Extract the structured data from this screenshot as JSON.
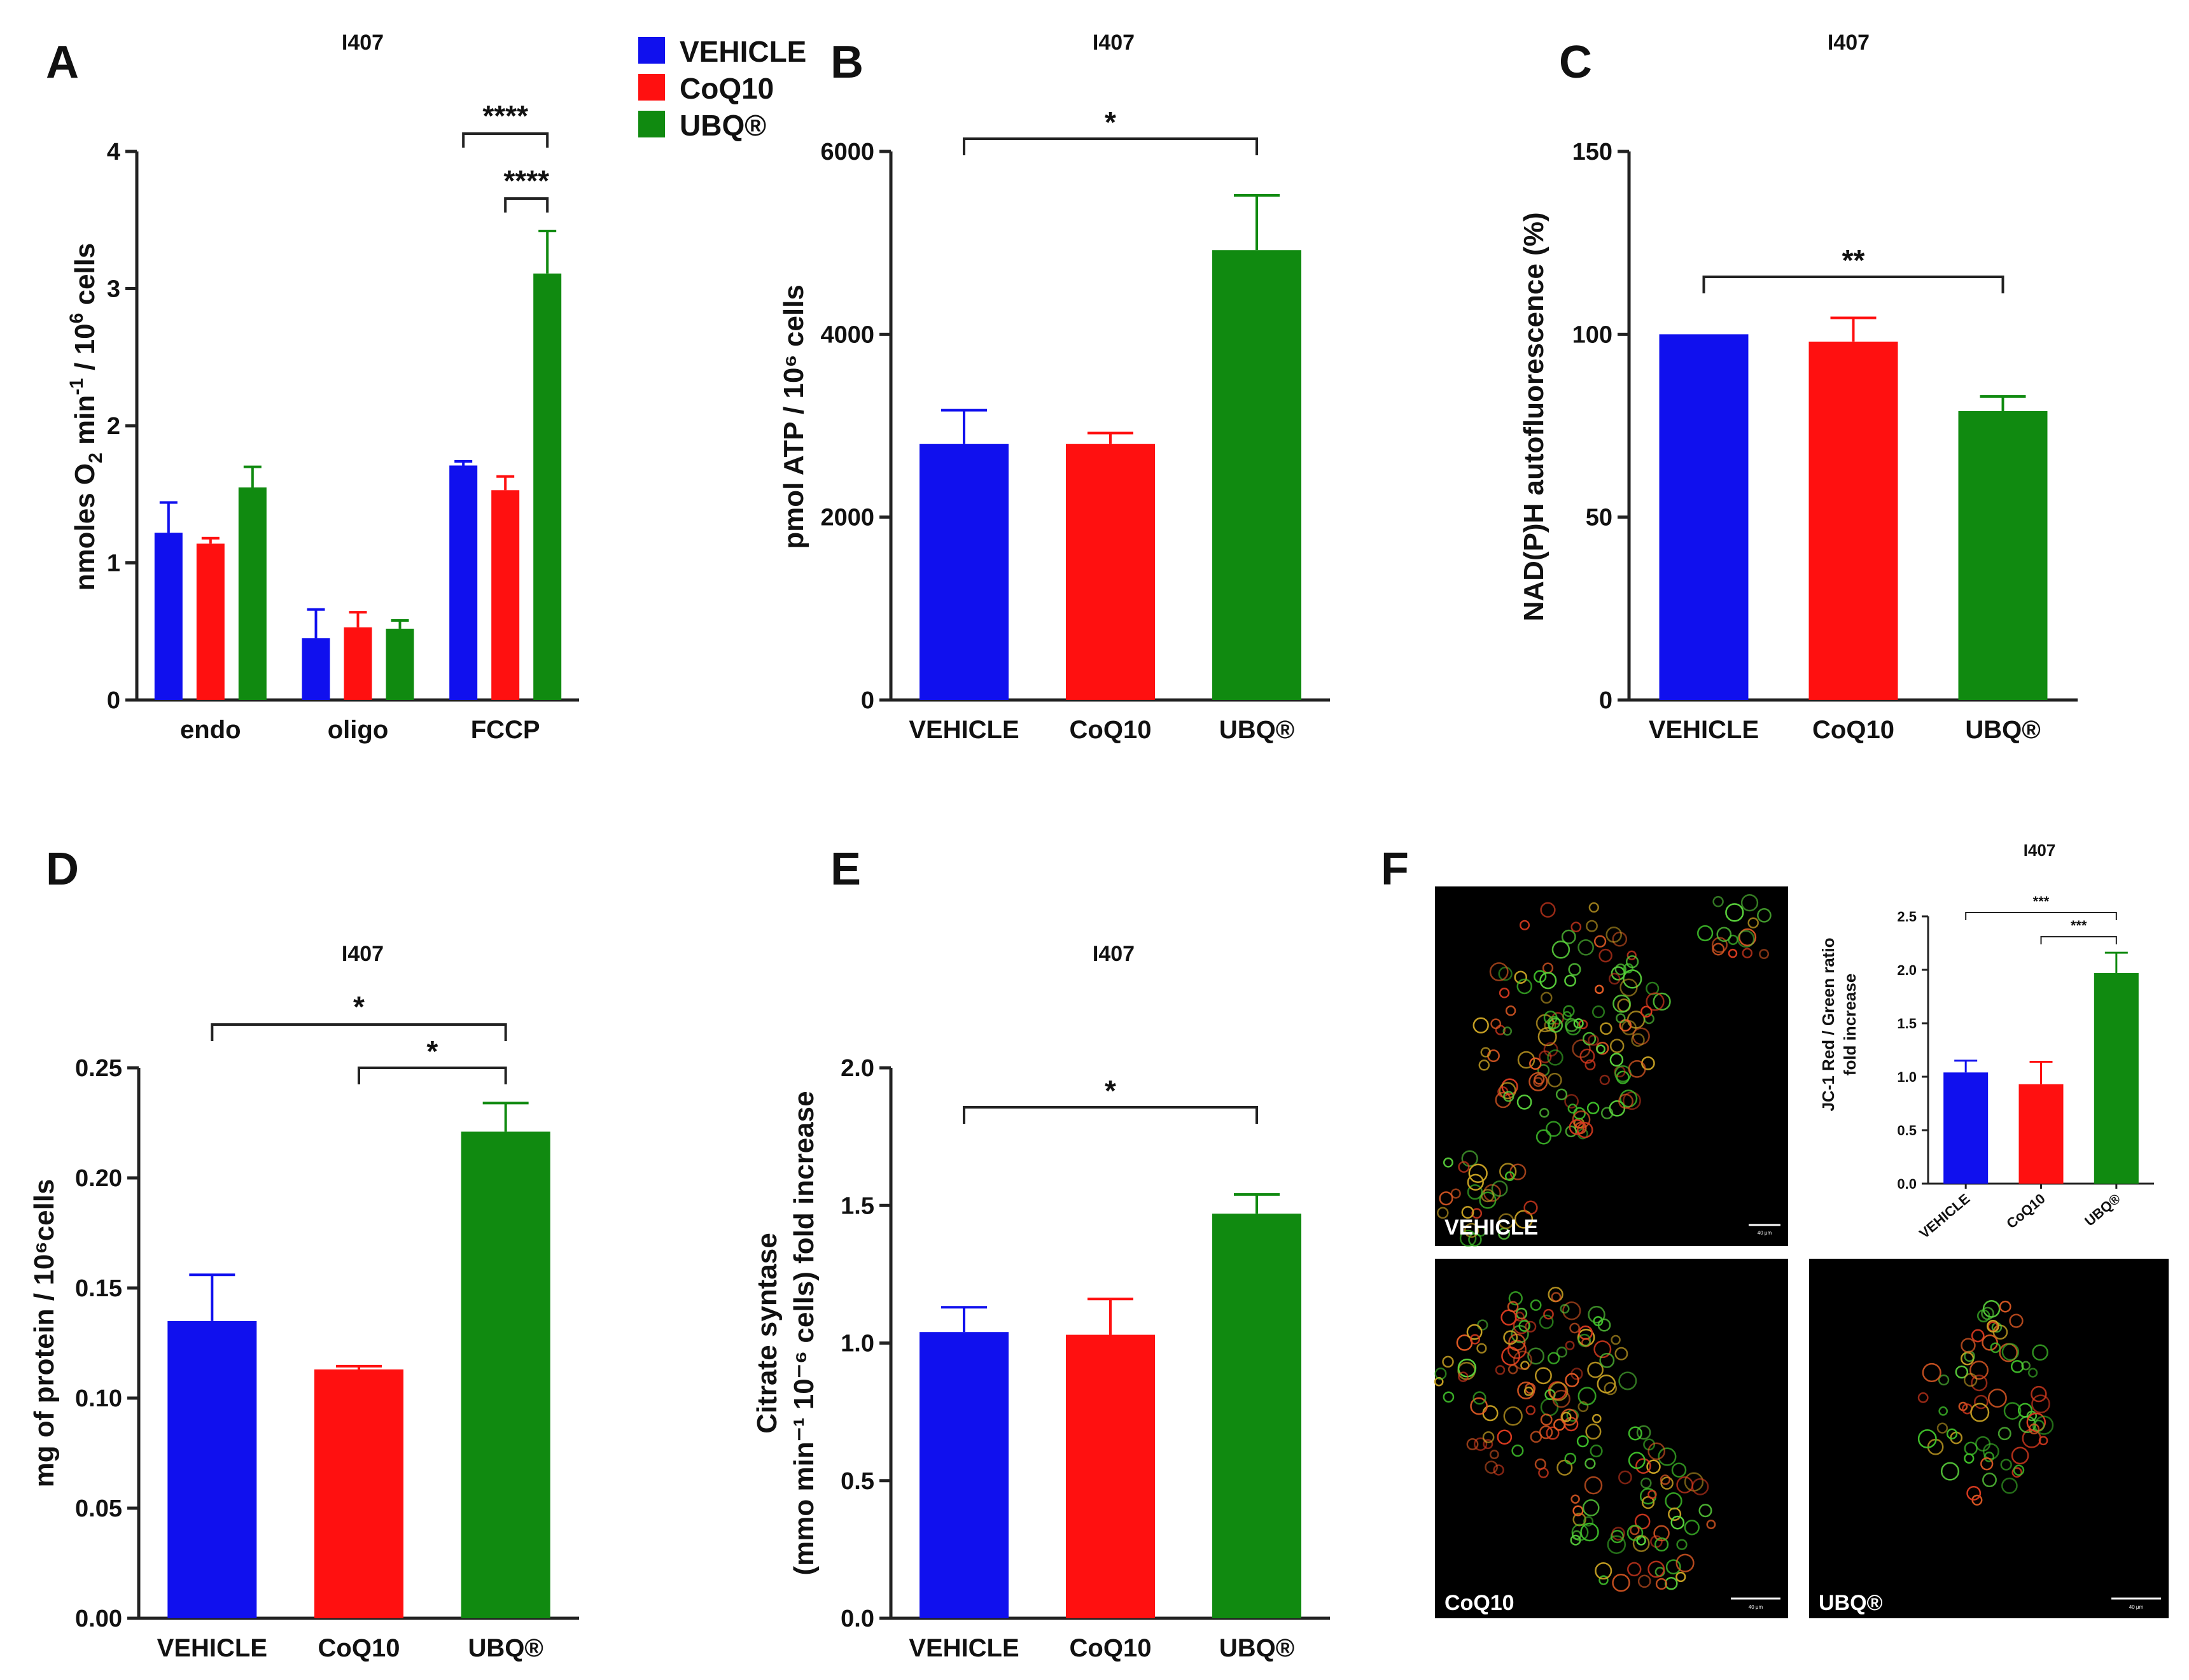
{
  "legend": [
    {
      "label": "VEHICLE",
      "color": "#1010ee"
    },
    {
      "label": "CoQ10",
      "color": "#ff1010"
    },
    {
      "label": "UBQ®",
      "color": "#108a10"
    }
  ],
  "chart_data": [
    {
      "id": "A",
      "panel_label": "A",
      "type": "bar",
      "title": "I407",
      "ylabel": "nmoles O₂ min⁻¹ / 10⁶ cells",
      "ylim": [
        0,
        4
      ],
      "yticks": [
        "0",
        "1",
        "2",
        "3",
        "4"
      ],
      "categories": [
        "endo",
        "oligo",
        "FCCP"
      ],
      "series": [
        {
          "name": "VEHICLE",
          "color": "#1010ee",
          "values": [
            1.22,
            0.45,
            1.71
          ],
          "errors": [
            0.22,
            0.21,
            0.03
          ]
        },
        {
          "name": "CoQ10",
          "color": "#ff1010",
          "values": [
            1.14,
            0.53,
            1.53
          ],
          "errors": [
            0.04,
            0.11,
            0.1
          ]
        },
        {
          "name": "UBQ®",
          "color": "#108a10",
          "values": [
            1.55,
            0.52,
            3.11
          ],
          "errors": [
            0.15,
            0.06,
            0.31
          ]
        }
      ],
      "significance": [
        {
          "label": "****",
          "between": [
            "FCCP:VEHICLE",
            "FCCP:UBQ®"
          ]
        },
        {
          "label": "****",
          "between": [
            "FCCP:CoQ10",
            "FCCP:UBQ®"
          ]
        }
      ]
    },
    {
      "id": "B",
      "panel_label": "B",
      "type": "bar",
      "title": "I407",
      "ylabel": "pmol ATP / 10⁶ cells",
      "ylim": [
        0,
        6000
      ],
      "yticks": [
        "0",
        "2000",
        "4000",
        "6000"
      ],
      "categories": [
        "VEHICLE",
        "CoQ10",
        "UBQ®"
      ],
      "colors": [
        "#1010ee",
        "#ff1010",
        "#108a10"
      ],
      "values": [
        2800,
        2800,
        4920
      ],
      "errors": [
        370,
        120,
        600
      ],
      "significance": [
        {
          "label": "*",
          "between": [
            "VEHICLE",
            "UBQ®"
          ]
        }
      ]
    },
    {
      "id": "C",
      "panel_label": "C",
      "type": "bar",
      "title": "I407",
      "ylabel": "NAD(P)H autofluorescence (%)",
      "ylim": [
        0,
        150
      ],
      "yticks": [
        "0",
        "50",
        "100",
        "150"
      ],
      "categories": [
        "VEHICLE",
        "CoQ10",
        "UBQ®"
      ],
      "colors": [
        "#1010ee",
        "#ff1010",
        "#108a10"
      ],
      "values": [
        100,
        98,
        79
      ],
      "errors": [
        0,
        6.5,
        4
      ],
      "significance": [
        {
          "label": "**",
          "between": [
            "VEHICLE",
            "UBQ®"
          ]
        }
      ]
    },
    {
      "id": "D",
      "panel_label": "D",
      "type": "bar",
      "title": "I407",
      "ylabel": "mg of protein / 10⁶cells",
      "ylim": [
        0,
        0.25
      ],
      "yticks": [
        "0.00",
        "0.05",
        "0.10",
        "0.15",
        "0.20",
        "0.25"
      ],
      "categories": [
        "VEHICLE",
        "CoQ10",
        "UBQ®"
      ],
      "colors": [
        "#1010ee",
        "#ff1010",
        "#108a10"
      ],
      "values": [
        0.135,
        0.113,
        0.221
      ],
      "errors": [
        0.021,
        0.0015,
        0.013
      ],
      "significance": [
        {
          "label": "*",
          "between": [
            "VEHICLE",
            "UBQ®"
          ]
        },
        {
          "label": "*",
          "between": [
            "CoQ10",
            "UBQ®"
          ]
        }
      ]
    },
    {
      "id": "E",
      "panel_label": "E",
      "type": "bar",
      "title": "I407",
      "ylabel": "Citrate syntase (mmo min⁻¹ 10⁻⁶ cells) fold increase",
      "ylabel_line1": "Citrate syntase",
      "ylabel_line2": "(mmo min⁻¹ 10⁻⁶ cells) fold increase",
      "ylim": [
        0,
        2.0
      ],
      "yticks": [
        "0.0",
        "0.5",
        "1.0",
        "1.5",
        "2.0"
      ],
      "categories": [
        "VEHICLE",
        "CoQ10",
        "UBQ®"
      ],
      "colors": [
        "#1010ee",
        "#ff1010",
        "#108a10"
      ],
      "values": [
        1.04,
        1.03,
        1.47
      ],
      "errors": [
        0.09,
        0.13,
        0.07
      ],
      "significance": [
        {
          "label": "*",
          "between": [
            "VEHICLE",
            "UBQ®"
          ]
        }
      ]
    },
    {
      "id": "F",
      "panel_label": "F",
      "type": "bar",
      "title": "I407",
      "ylabel": "JC-1 Red / Green ratio fold increase",
      "ylabel_line1": "JC-1 Red / Green ratio",
      "ylabel_line2": "fold increase",
      "ylim": [
        0,
        2.5
      ],
      "yticks": [
        "0.0",
        "0.5",
        "1.0",
        "1.5",
        "2.0",
        "2.5"
      ],
      "categories": [
        "VEHICLE",
        "CoQ10",
        "UBQ®"
      ],
      "colors": [
        "#1010ee",
        "#ff1010",
        "#108a10"
      ],
      "values": [
        1.04,
        0.93,
        1.97
      ],
      "errors": [
        0.11,
        0.21,
        0.19
      ],
      "significance": [
        {
          "label": "***",
          "between": [
            "VEHICLE",
            "UBQ®"
          ]
        },
        {
          "label": "***",
          "between": [
            "CoQ10",
            "UBQ®"
          ]
        }
      ]
    }
  ],
  "micrographs": [
    {
      "label": "VEHICLE",
      "scale": "40 μm"
    },
    {
      "label": "CoQ10",
      "scale": "40 μm"
    },
    {
      "label": "UBQ®",
      "scale": "40 μm"
    }
  ]
}
